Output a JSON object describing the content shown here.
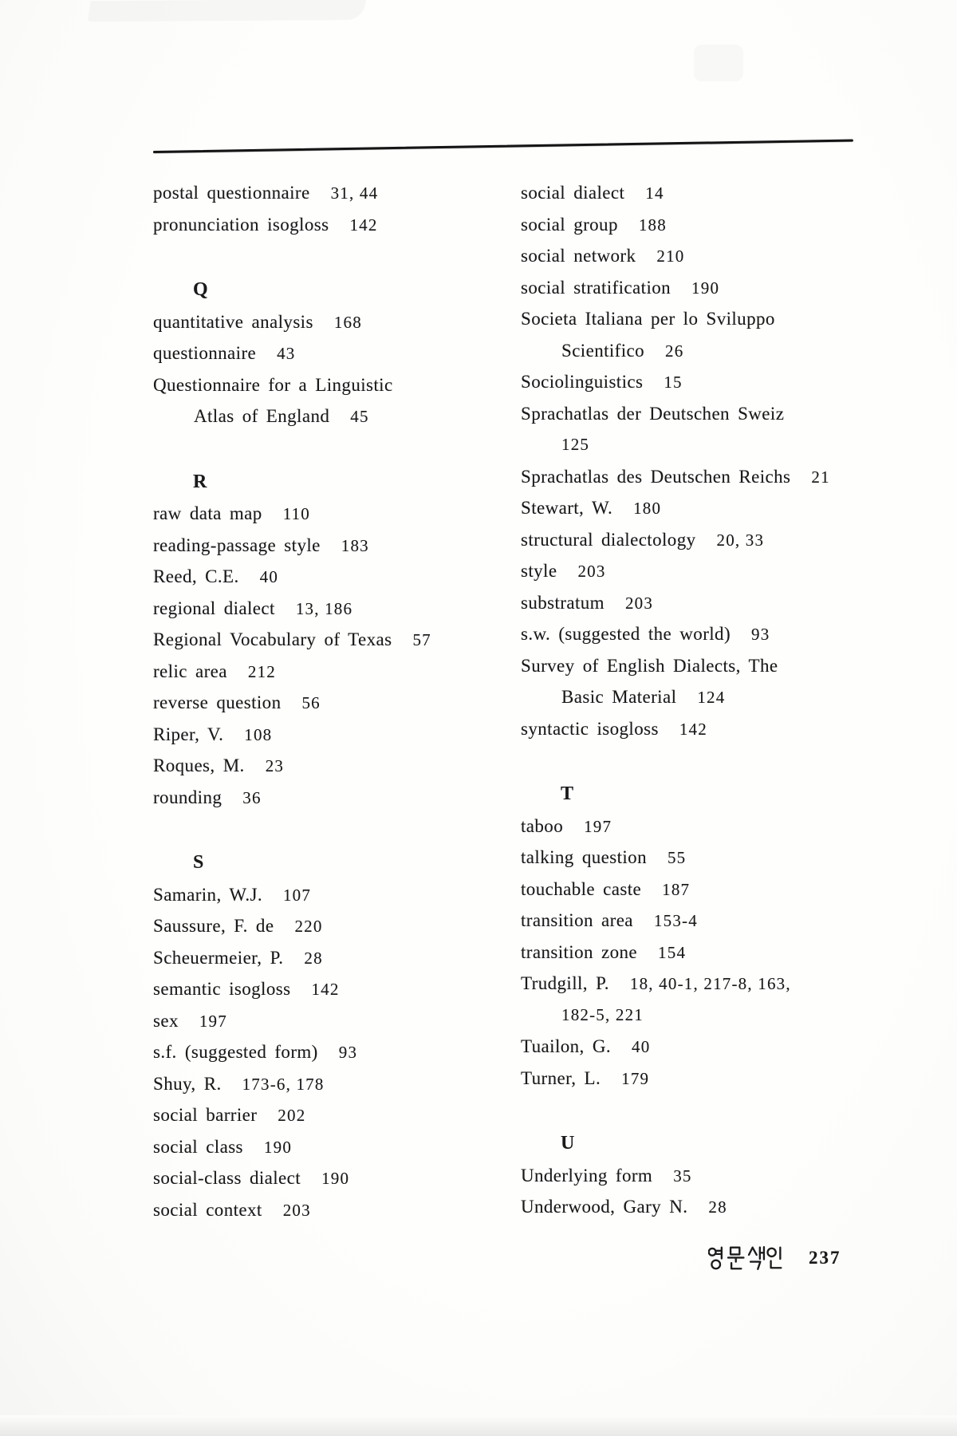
{
  "page": {
    "kind": "scanned book index page",
    "paper_color": "#fdfdfc",
    "ink_color": "#1a1a1a",
    "footer": {
      "korean_label": "영문색인",
      "page_number": "237"
    }
  },
  "index": {
    "left_column": [
      {
        "type": "entry",
        "text": "postal questionnaire",
        "pages": "31, 44"
      },
      {
        "type": "entry",
        "text": "pronunciation isogloss",
        "pages": "142"
      },
      {
        "type": "heading",
        "text": "Q"
      },
      {
        "type": "entry",
        "text": "quantitative analysis",
        "pages": "168"
      },
      {
        "type": "entry",
        "text": "questionnaire",
        "pages": "43"
      },
      {
        "type": "entry",
        "text": "Questionnaire for a Linguistic"
      },
      {
        "type": "continuation",
        "text": "Atlas of England",
        "pages": "45"
      },
      {
        "type": "heading",
        "text": "R"
      },
      {
        "type": "entry",
        "text": "raw data map",
        "pages": "110"
      },
      {
        "type": "entry",
        "text": "reading-passage style",
        "pages": "183"
      },
      {
        "type": "entry",
        "text": "Reed, C.E.",
        "pages": "40"
      },
      {
        "type": "entry",
        "text": "regional dialect",
        "pages": "13, 186"
      },
      {
        "type": "entry",
        "text": "Regional Vocabulary of Texas",
        "pages": "57"
      },
      {
        "type": "entry",
        "text": "relic area",
        "pages": "212"
      },
      {
        "type": "entry",
        "text": "reverse question",
        "pages": "56"
      },
      {
        "type": "entry",
        "text": "Riper, V.",
        "pages": "108"
      },
      {
        "type": "entry",
        "text": "Roques, M.",
        "pages": "23"
      },
      {
        "type": "entry",
        "text": "rounding",
        "pages": "36"
      },
      {
        "type": "heading",
        "text": "S"
      },
      {
        "type": "entry",
        "text": "Samarin, W.J.",
        "pages": "107"
      },
      {
        "type": "entry",
        "text": "Saussure, F. de",
        "pages": "220"
      },
      {
        "type": "entry",
        "text": "Scheuermeier, P.",
        "pages": "28"
      },
      {
        "type": "entry",
        "text": "semantic isogloss",
        "pages": "142"
      },
      {
        "type": "entry",
        "text": "sex",
        "pages": "197"
      },
      {
        "type": "entry",
        "text": "s.f. (suggested form)",
        "pages": "93"
      },
      {
        "type": "entry",
        "text": "Shuy, R.",
        "pages": "173-6, 178"
      },
      {
        "type": "entry",
        "text": "social barrier",
        "pages": "202"
      },
      {
        "type": "entry",
        "text": "social class",
        "pages": "190"
      },
      {
        "type": "entry",
        "text": "social-class dialect",
        "pages": "190"
      },
      {
        "type": "entry",
        "text": "social context",
        "pages": "203"
      }
    ],
    "right_column": [
      {
        "type": "entry",
        "text": "social dialect",
        "pages": "14"
      },
      {
        "type": "entry",
        "text": "social group",
        "pages": "188"
      },
      {
        "type": "entry",
        "text": "social network",
        "pages": "210"
      },
      {
        "type": "entry",
        "text": "social stratification",
        "pages": "190"
      },
      {
        "type": "entry",
        "text": "Societa Italiana per lo Sviluppo"
      },
      {
        "type": "continuation",
        "text": "Scientifico",
        "pages": "26"
      },
      {
        "type": "entry",
        "text": "Sociolinguistics",
        "pages": "15"
      },
      {
        "type": "entry",
        "text": "Sprachatlas der Deutschen Sweiz"
      },
      {
        "type": "continuation",
        "text": "",
        "pages": "125"
      },
      {
        "type": "entry",
        "text": "Sprachatlas des Deutschen Reichs",
        "pages": "21"
      },
      {
        "type": "entry",
        "text": "Stewart, W.",
        "pages": "180"
      },
      {
        "type": "entry",
        "text": "structural dialectology",
        "pages": "20, 33"
      },
      {
        "type": "entry",
        "text": "style",
        "pages": "203"
      },
      {
        "type": "entry",
        "text": "substratum",
        "pages": "203"
      },
      {
        "type": "entry",
        "text": "s.w. (suggested the world)",
        "pages": "93"
      },
      {
        "type": "entry",
        "text": "Survey of English Dialects, The"
      },
      {
        "type": "continuation",
        "text": "Basic Material",
        "pages": "124"
      },
      {
        "type": "entry",
        "text": "syntactic isogloss",
        "pages": "142"
      },
      {
        "type": "heading",
        "text": "T"
      },
      {
        "type": "entry",
        "text": "taboo",
        "pages": "197"
      },
      {
        "type": "entry",
        "text": "talking question",
        "pages": "55"
      },
      {
        "type": "entry",
        "text": "touchable caste",
        "pages": "187"
      },
      {
        "type": "entry",
        "text": "transition area",
        "pages": "153-4"
      },
      {
        "type": "entry",
        "text": "transition zone",
        "pages": "154"
      },
      {
        "type": "entry",
        "text": "Trudgill, P.",
        "pages": "18, 40-1, 217-8, 163,"
      },
      {
        "type": "continuation",
        "text": "",
        "pages": "182-5, 221"
      },
      {
        "type": "entry",
        "text": "Tuailon, G.",
        "pages": "40"
      },
      {
        "type": "entry",
        "text": "Turner, L.",
        "pages": "179"
      },
      {
        "type": "heading",
        "text": "U"
      },
      {
        "type": "entry",
        "text": "Underlying form",
        "pages": "35"
      },
      {
        "type": "entry",
        "text": "Underwood, Gary N.",
        "pages": "28"
      }
    ]
  }
}
